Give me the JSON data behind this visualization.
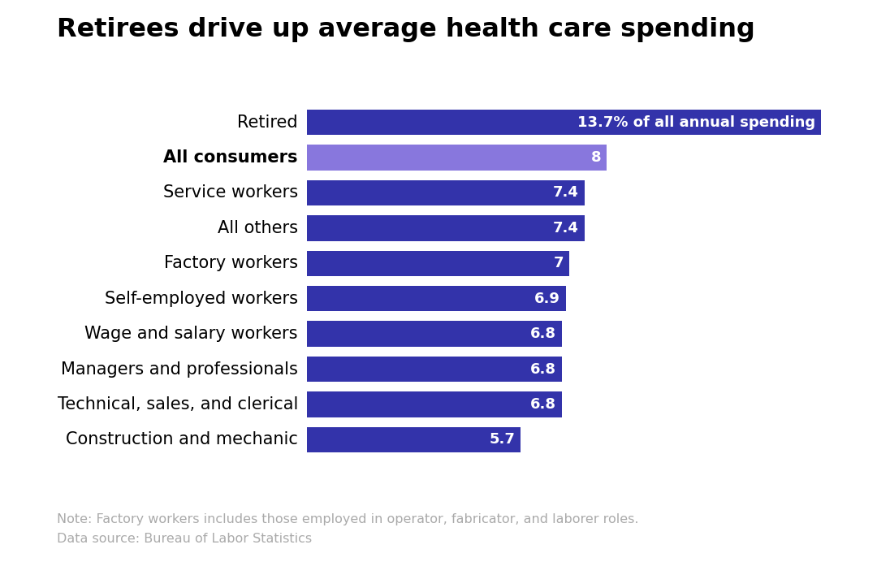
{
  "title": "Retirees drive up average health care spending",
  "categories": [
    "Construction and mechanic",
    "Technical, sales, and clerical",
    "Managers and professionals",
    "Wage and salary workers",
    "Self-employed workers",
    "Factory workers",
    "All others",
    "Service workers",
    "All consumers",
    "Retired"
  ],
  "values": [
    5.7,
    6.8,
    6.8,
    6.8,
    6.9,
    7.0,
    7.4,
    7.4,
    8.0,
    13.7
  ],
  "labels": [
    "5.7",
    "6.8",
    "6.8",
    "6.8",
    "6.9",
    "7",
    "7.4",
    "7.4",
    "8",
    "13.7% of all annual spending"
  ],
  "bar_colors": [
    "#3333aa",
    "#3333aa",
    "#3333aa",
    "#3333aa",
    "#3333aa",
    "#3333aa",
    "#3333aa",
    "#3333aa",
    "#8877dd",
    "#3333aa"
  ],
  "bold_category": "All consumers",
  "background_color": "#ffffff",
  "note": "Note: Factory workers includes those employed in operator, fabricator, and laborer roles.",
  "source": "Data source: Bureau of Labor Statistics",
  "xlim": [
    0,
    14.5
  ],
  "label_fontsize": 13,
  "category_fontsize": 15,
  "title_fontsize": 23,
  "note_fontsize": 11.5,
  "note_color": "#aaaaaa"
}
